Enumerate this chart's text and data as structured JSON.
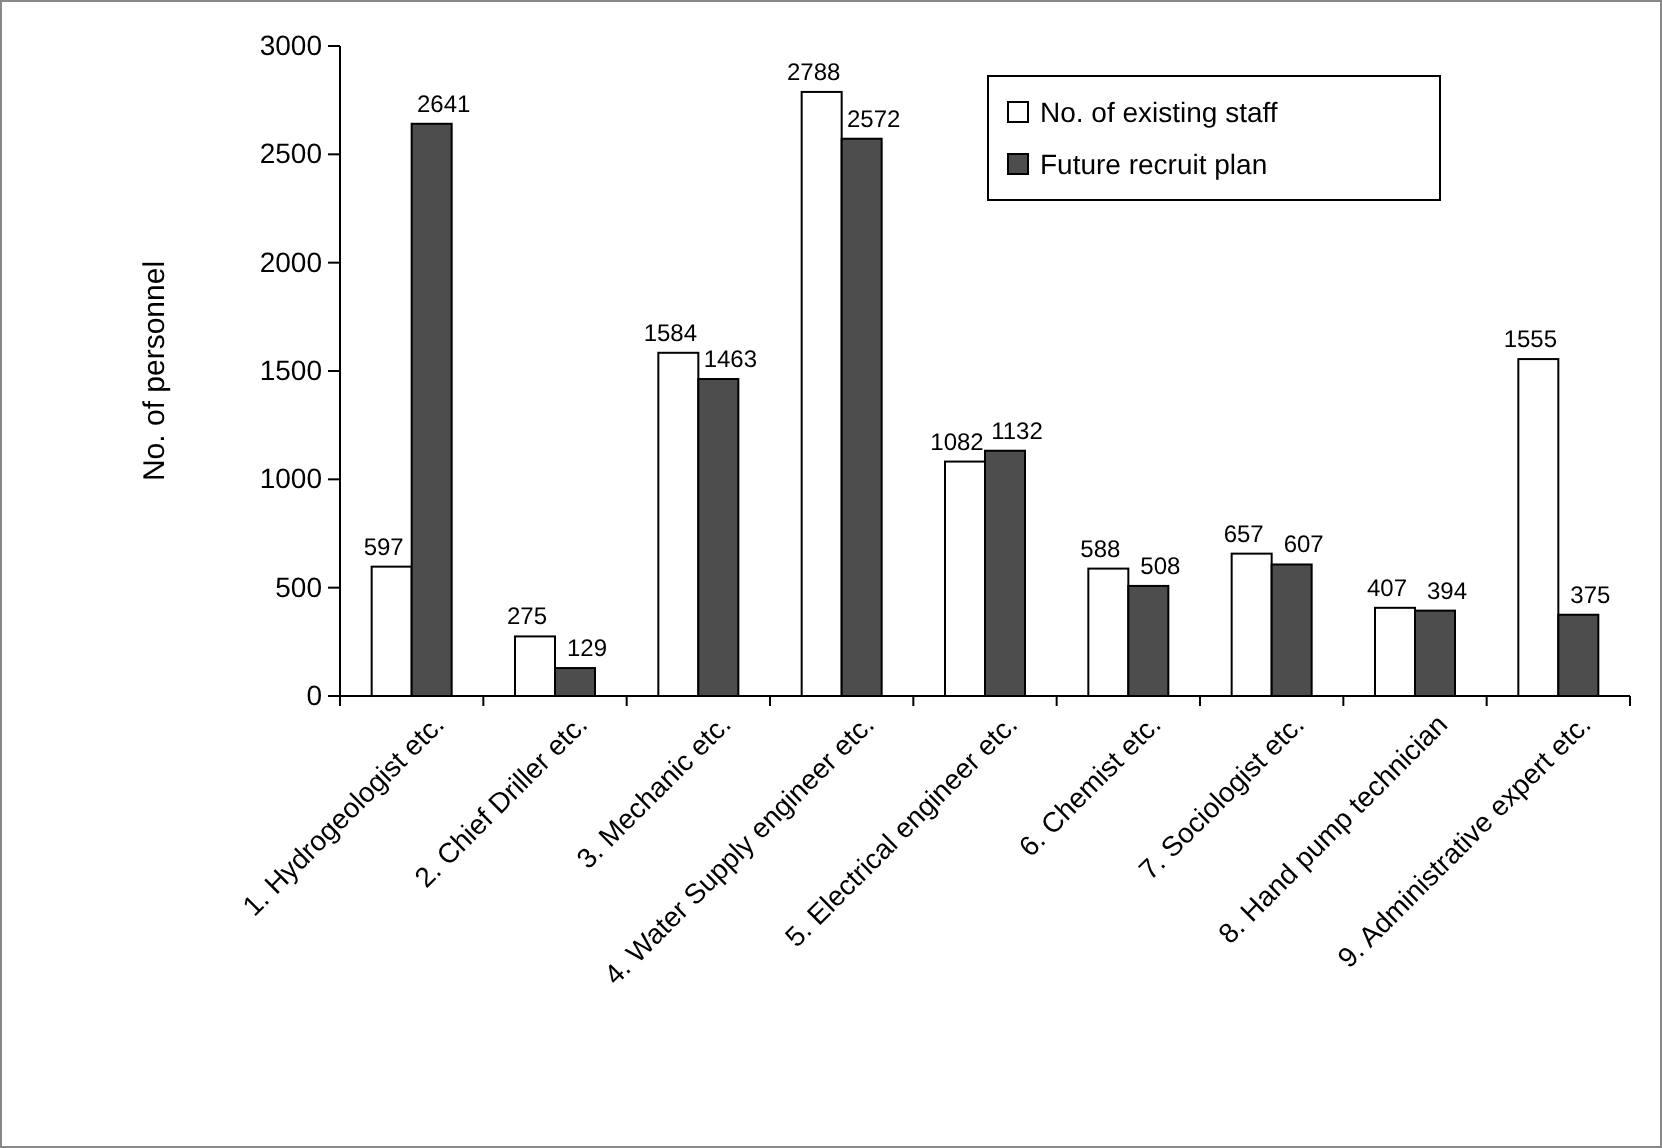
{
  "chart_data": {
    "type": "bar",
    "ylabel": "No. of personnel",
    "categories": [
      "1. Hydrogeologist etc.",
      "2. Chief Driller etc.",
      "3. Mechanic etc.",
      "4. Water Supply engineer etc.",
      "5. Electrical engineer etc.",
      "6. Chemist etc.",
      "7. Sociologist etc.",
      "8. Hand pump technician",
      "9. Administrative expert etc."
    ],
    "series": [
      {
        "name": "No. of existing staff",
        "color": "#ffffff",
        "values": [
          597,
          275,
          1584,
          2788,
          1082,
          588,
          657,
          407,
          1555
        ]
      },
      {
        "name": "Future recruit plan",
        "color": "#4d4d4d",
        "values": [
          2641,
          129,
          1463,
          2572,
          1132,
          508,
          607,
          394,
          375
        ]
      }
    ],
    "ylim": [
      0,
      3000
    ],
    "yticks": [
      0,
      500,
      1000,
      1500,
      2000,
      2500,
      3000
    ],
    "grid": false,
    "legend": "top right",
    "data_labels": true
  }
}
